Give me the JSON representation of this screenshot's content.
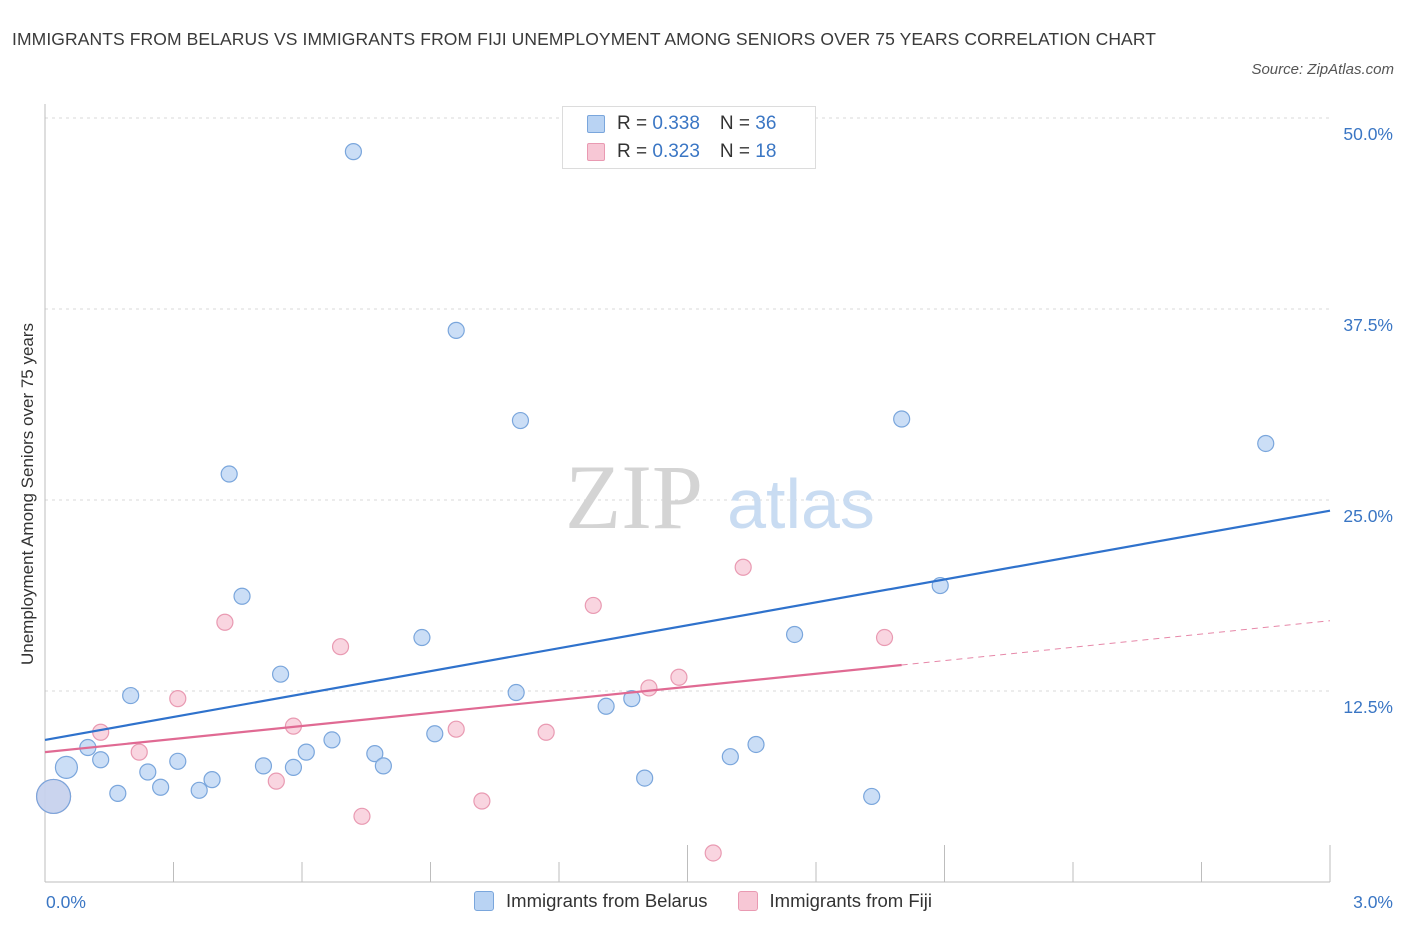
{
  "title": "IMMIGRANTS FROM BELARUS VS IMMIGRANTS FROM FIJI UNEMPLOYMENT AMONG SENIORS OVER 75 YEARS CORRELATION CHART",
  "source": "Source: ZipAtlas.com",
  "watermark": {
    "zip": "ZIP",
    "atlas": "atlas"
  },
  "legend": {
    "rows": [
      {
        "r_label": "R = ",
        "r_value": "0.338",
        "n_label": "N = ",
        "n_value": "36"
      },
      {
        "r_label": "R = ",
        "r_value": "0.323",
        "n_label": "N = ",
        "n_value": "18"
      }
    ]
  },
  "colors": {
    "belarus_fill": "#b9d3f3",
    "belarus_stroke": "#7aa6dc",
    "belarus_line": "#2f72cc",
    "fiji_fill": "#f7c7d5",
    "fiji_stroke": "#e99ab2",
    "fiji_line": "#e06a93",
    "tick_label": "#3a76c4",
    "grid": "#d9d9d9"
  },
  "chart_data": {
    "type": "scatter",
    "title": "IMMIGRANTS FROM BELARUS VS IMMIGRANTS FROM FIJI UNEMPLOYMENT AMONG SENIORS OVER 75 YEARS CORRELATION CHART",
    "xlabel": "",
    "ylabel": "Unemployment Among Seniors over 75 years",
    "xlim": [
      0,
      3.0
    ],
    "ylim": [
      0,
      50
    ],
    "x_ticks": [
      "0.0%",
      "3.0%"
    ],
    "y_ticks": [
      {
        "value": 12.5,
        "label": "12.5%"
      },
      {
        "value": 25.0,
        "label": "25.0%"
      },
      {
        "value": 37.5,
        "label": "37.5%"
      },
      {
        "value": 50.0,
        "label": "50.0%"
      }
    ],
    "grid": true,
    "legend_position": "top-center",
    "series": [
      {
        "name": "Immigrants from Belarus",
        "points": [
          [
            0.02,
            5.6,
            3
          ],
          [
            0.05,
            7.5,
            2
          ],
          [
            0.1,
            8.8,
            1
          ],
          [
            0.13,
            8.0,
            1
          ],
          [
            0.17,
            5.8,
            1
          ],
          [
            0.2,
            12.2,
            1
          ],
          [
            0.24,
            7.2,
            1
          ],
          [
            0.27,
            6.2,
            1
          ],
          [
            0.31,
            7.9,
            1
          ],
          [
            0.36,
            6.0,
            1
          ],
          [
            0.39,
            6.7,
            1
          ],
          [
            0.43,
            26.7,
            1
          ],
          [
            0.46,
            18.7,
            1
          ],
          [
            0.51,
            7.6,
            1
          ],
          [
            0.55,
            13.6,
            1
          ],
          [
            0.58,
            7.5,
            1
          ],
          [
            0.61,
            8.5,
            1
          ],
          [
            0.67,
            9.3,
            1
          ],
          [
            0.72,
            47.8,
            1
          ],
          [
            0.77,
            8.4,
            1
          ],
          [
            0.79,
            7.6,
            1
          ],
          [
            0.88,
            16.0,
            1
          ],
          [
            0.91,
            9.7,
            1
          ],
          [
            0.96,
            36.1,
            1
          ],
          [
            1.1,
            12.4,
            1
          ],
          [
            1.11,
            30.2,
            1
          ],
          [
            1.31,
            11.5,
            1
          ],
          [
            1.37,
            12.0,
            1
          ],
          [
            1.4,
            6.8,
            1
          ],
          [
            1.6,
            8.2,
            1
          ],
          [
            1.66,
            9.0,
            1
          ],
          [
            1.75,
            16.2,
            1
          ],
          [
            1.93,
            5.6,
            1
          ],
          [
            2.0,
            30.3,
            1
          ],
          [
            2.09,
            19.4,
            1
          ],
          [
            2.85,
            28.7,
            1
          ]
        ],
        "trend": {
          "x": [
            0.0,
            3.0
          ],
          "y": [
            9.3,
            24.3
          ]
        }
      },
      {
        "name": "Immigrants from Fiji",
        "points": [
          [
            0.02,
            5.6,
            3
          ],
          [
            0.13,
            9.8,
            1
          ],
          [
            0.22,
            8.5,
            1
          ],
          [
            0.31,
            12.0,
            1
          ],
          [
            0.42,
            17.0,
            1
          ],
          [
            0.54,
            6.6,
            1
          ],
          [
            0.58,
            10.2,
            1
          ],
          [
            0.69,
            15.4,
            1
          ],
          [
            0.74,
            4.3,
            1
          ],
          [
            0.96,
            10.0,
            1
          ],
          [
            1.02,
            5.3,
            1
          ],
          [
            1.17,
            9.8,
            1
          ],
          [
            1.28,
            18.1,
            1
          ],
          [
            1.41,
            12.7,
            1
          ],
          [
            1.48,
            13.4,
            1
          ],
          [
            1.56,
            1.9,
            1
          ],
          [
            1.63,
            20.6,
            1
          ],
          [
            1.96,
            16.0,
            1
          ]
        ],
        "trend": {
          "x": [
            0.0,
            2.0
          ],
          "y": [
            8.5,
            14.2
          ]
        },
        "trend_extension": {
          "x": [
            2.0,
            3.0
          ],
          "y": [
            14.2,
            17.1
          ]
        }
      }
    ]
  }
}
